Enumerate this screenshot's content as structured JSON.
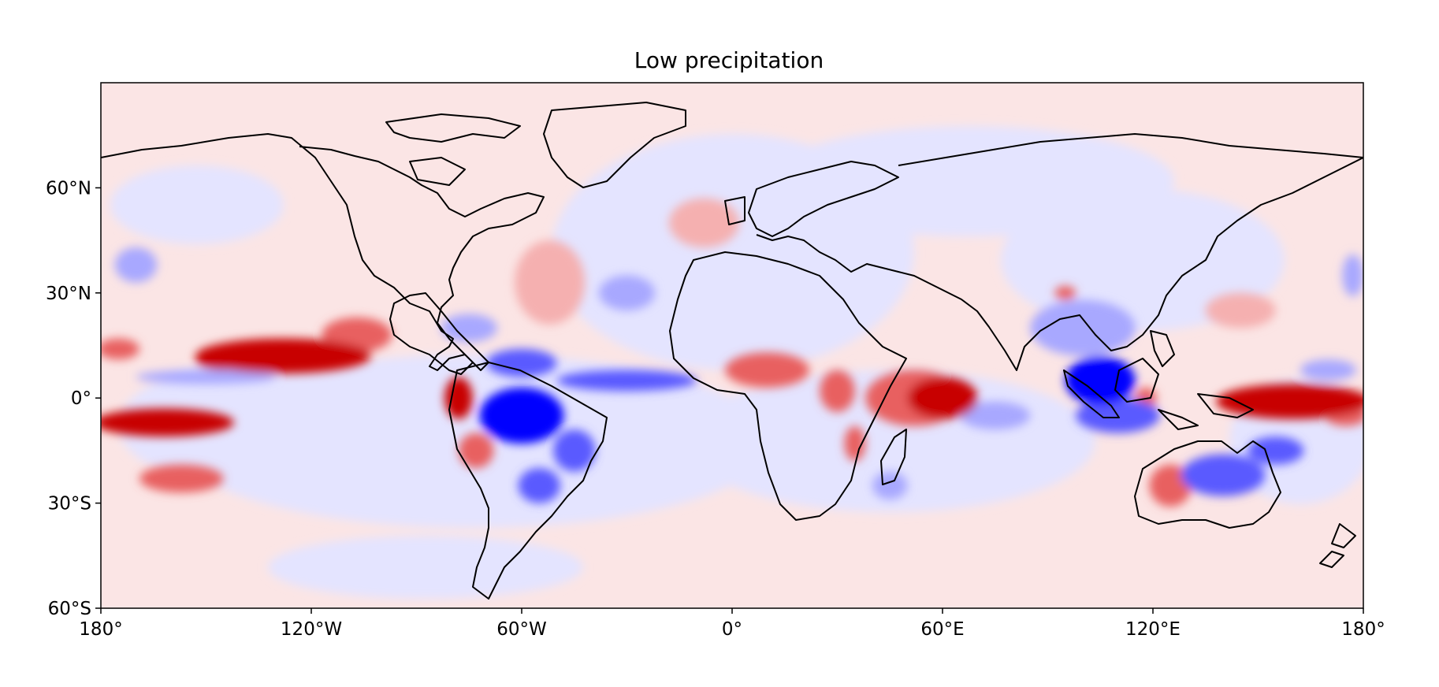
{
  "title": "Low precipitation",
  "chart_data": {
    "type": "heatmap",
    "title": "Low precipitation",
    "projection": "PlateCarree",
    "xlim": [
      -180,
      180
    ],
    "ylim": [
      -60,
      90
    ],
    "x_ticks": [
      {
        "value": -180,
        "label": "180°"
      },
      {
        "value": -120,
        "label": "120°W"
      },
      {
        "value": -60,
        "label": "60°W"
      },
      {
        "value": 0,
        "label": "0°"
      },
      {
        "value": 60,
        "label": "60°E"
      },
      {
        "value": 120,
        "label": "120°E"
      },
      {
        "value": 180,
        "label": "180°"
      }
    ],
    "y_ticks": [
      {
        "value": -60,
        "label": "60°S"
      },
      {
        "value": -30,
        "label": "30°S"
      },
      {
        "value": 0,
        "label": "0°"
      },
      {
        "value": 30,
        "label": "30°N"
      },
      {
        "value": 60,
        "label": "60°N"
      }
    ],
    "colormap": [
      "#0000ff",
      "#5a5aff",
      "#a8a8ff",
      "#e4e4ff",
      "#fbe5e5",
      "#f5b0b0",
      "#e86060",
      "#c80000"
    ],
    "grid": false,
    "anomaly_regions": [
      {
        "lon": -162,
        "lat": -7,
        "rlon": 20,
        "rlat": 4,
        "level": 3
      },
      {
        "lon": -128,
        "lat": 12,
        "rlon": 25,
        "rlat": 5,
        "level": 3
      },
      {
        "lon": -107,
        "lat": 18,
        "rlon": 10,
        "rlat": 5,
        "level": 2
      },
      {
        "lon": -145,
        "lat": 11,
        "rlon": 8,
        "rlat": 3,
        "level": 3
      },
      {
        "lon": -157,
        "lat": -23,
        "rlon": 12,
        "rlat": 4,
        "level": 2
      },
      {
        "lon": -175,
        "lat": 14,
        "rlon": 6,
        "rlat": 3,
        "level": 2
      },
      {
        "lon": -78,
        "lat": 0,
        "rlon": 4,
        "rlat": 6,
        "level": 3
      },
      {
        "lon": -73,
        "lat": -15,
        "rlon": 5,
        "rlat": 5,
        "level": 2
      },
      {
        "lon": -52,
        "lat": 33,
        "rlon": 10,
        "rlat": 12,
        "level": 1
      },
      {
        "lon": 10,
        "lat": 8,
        "rlon": 12,
        "rlat": 5,
        "level": 2
      },
      {
        "lon": 30,
        "lat": 2,
        "rlon": 5,
        "rlat": 6,
        "level": 2
      },
      {
        "lon": 35,
        "lat": -13,
        "rlon": 3,
        "rlat": 5,
        "level": 2
      },
      {
        "lon": 60,
        "lat": 0,
        "rlon": 10,
        "rlat": 6,
        "level": 3
      },
      {
        "lon": 52,
        "lat": 0,
        "rlon": 14,
        "rlat": 8,
        "level": 2
      },
      {
        "lon": 160,
        "lat": -1,
        "rlon": 22,
        "rlat": 5,
        "level": 3
      },
      {
        "lon": 175,
        "lat": -5,
        "rlon": 6,
        "rlat": 3,
        "level": 2
      },
      {
        "lon": 125,
        "lat": -25,
        "rlon": 6,
        "rlat": 6,
        "level": 2
      },
      {
        "lon": 145,
        "lat": 25,
        "rlon": 10,
        "rlat": 5,
        "level": 1
      },
      {
        "lon": -8,
        "lat": 50,
        "rlon": 10,
        "rlat": 7,
        "level": 1
      },
      {
        "lon": 95,
        "lat": 30,
        "rlon": 3,
        "rlat": 2,
        "level": 2
      },
      {
        "lon": 118,
        "lat": 0,
        "rlon": 3,
        "rlat": 3,
        "level": 2
      },
      {
        "lon": -60,
        "lat": 10,
        "rlon": 10,
        "rlat": 4,
        "level": -2
      },
      {
        "lon": -60,
        "lat": -5,
        "rlon": 12,
        "rlat": 8,
        "level": -3
      },
      {
        "lon": -45,
        "lat": -15,
        "rlon": 6,
        "rlat": 6,
        "level": -2
      },
      {
        "lon": -55,
        "lat": -25,
        "rlon": 6,
        "rlat": 5,
        "level": -2
      },
      {
        "lon": -30,
        "lat": 5,
        "rlon": 20,
        "rlat": 3,
        "level": -2
      },
      {
        "lon": -75,
        "lat": 20,
        "rlon": 8,
        "rlat": 4,
        "level": -1
      },
      {
        "lon": 105,
        "lat": 5,
        "rlon": 10,
        "rlat": 7,
        "level": -3
      },
      {
        "lon": 110,
        "lat": -5,
        "rlon": 12,
        "rlat": 5,
        "level": -2
      },
      {
        "lon": 100,
        "lat": 20,
        "rlon": 15,
        "rlat": 8,
        "level": -1
      },
      {
        "lon": 140,
        "lat": -22,
        "rlon": 12,
        "rlat": 6,
        "level": -2
      },
      {
        "lon": 155,
        "lat": -15,
        "rlon": 8,
        "rlat": 4,
        "level": -2
      },
      {
        "lon": 75,
        "lat": -5,
        "rlon": 10,
        "rlat": 4,
        "level": -1
      },
      {
        "lon": -30,
        "lat": 30,
        "rlon": 8,
        "rlat": 5,
        "level": -1
      },
      {
        "lon": -170,
        "lat": 38,
        "rlon": 6,
        "rlat": 5,
        "level": -1
      },
      {
        "lon": -150,
        "lat": 6,
        "rlon": 20,
        "rlat": 2,
        "level": -1
      },
      {
        "lon": 45,
        "lat": -25,
        "rlon": 5,
        "rlat": 4,
        "level": -1
      },
      {
        "lon": 177,
        "lat": 35,
        "rlon": 3,
        "rlat": 6,
        "level": -1
      },
      {
        "lon": 170,
        "lat": 8,
        "rlon": 8,
        "rlat": 3,
        "level": -1
      }
    ]
  }
}
